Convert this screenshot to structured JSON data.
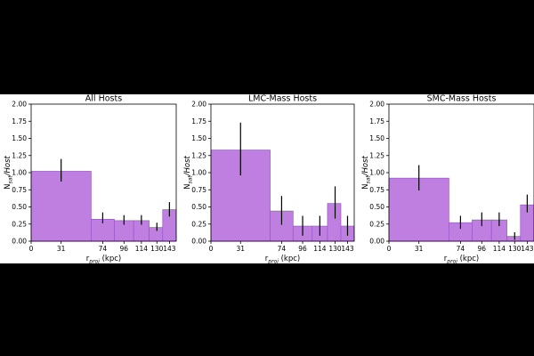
{
  "chart_data": [
    {
      "type": "bar",
      "title": "All Hosts",
      "xlabel": {
        "main": "r",
        "sub": "proj",
        "tail": " (kpc)"
      },
      "ylabel": {
        "main": "N",
        "sub": "sat",
        "tail": "/Host"
      },
      "xlim": [
        0,
        150
      ],
      "ylim": [
        0,
        2.0
      ],
      "xticks": [
        0,
        31,
        74,
        96,
        114,
        130,
        143
      ],
      "yticks": [
        "0.00",
        "0.25",
        "0.50",
        "0.75",
        "1.00",
        "1.25",
        "1.50",
        "1.75",
        "2.00"
      ],
      "bins": [
        {
          "x0": 0,
          "x1": 62,
          "value": 1.02,
          "err_low": 0.87,
          "err_high": 1.2,
          "err_x": 31
        },
        {
          "x0": 62,
          "x1": 86,
          "value": 0.32,
          "err_low": 0.26,
          "err_high": 0.42,
          "err_x": 74
        },
        {
          "x0": 86,
          "x1": 106,
          "value": 0.3,
          "err_low": 0.24,
          "err_high": 0.38,
          "err_x": 96
        },
        {
          "x0": 106,
          "x1": 122,
          "value": 0.3,
          "err_low": 0.24,
          "err_high": 0.38,
          "err_x": 114
        },
        {
          "x0": 122,
          "x1": 136,
          "value": 0.2,
          "err_low": 0.15,
          "err_high": 0.27,
          "err_x": 130
        },
        {
          "x0": 136,
          "x1": 150,
          "value": 0.46,
          "err_low": 0.36,
          "err_high": 0.57,
          "err_x": 143
        }
      ]
    },
    {
      "type": "bar",
      "title": "LMC-Mass Hosts",
      "xlabel": {
        "main": "r",
        "sub": "proj",
        "tail": " (kpc)"
      },
      "ylabel": {
        "main": "N",
        "sub": "sat",
        "tail": "/Host"
      },
      "xlim": [
        0,
        150
      ],
      "ylim": [
        0,
        2.0
      ],
      "xticks": [
        0,
        31,
        74,
        96,
        114,
        130,
        143
      ],
      "yticks": [
        "0.00",
        "0.25",
        "0.50",
        "0.75",
        "1.00",
        "1.25",
        "1.50",
        "1.75",
        "2.00"
      ],
      "bins": [
        {
          "x0": 0,
          "x1": 62,
          "value": 1.33,
          "err_low": 0.96,
          "err_high": 1.73,
          "err_x": 31
        },
        {
          "x0": 62,
          "x1": 86,
          "value": 0.44,
          "err_low": 0.24,
          "err_high": 0.66,
          "err_x": 74
        },
        {
          "x0": 86,
          "x1": 106,
          "value": 0.22,
          "err_low": 0.08,
          "err_high": 0.37,
          "err_x": 96
        },
        {
          "x0": 106,
          "x1": 122,
          "value": 0.22,
          "err_low": 0.08,
          "err_high": 0.37,
          "err_x": 114
        },
        {
          "x0": 122,
          "x1": 136,
          "value": 0.55,
          "err_low": 0.33,
          "err_high": 0.8,
          "err_x": 130
        },
        {
          "x0": 136,
          "x1": 150,
          "value": 0.22,
          "err_low": 0.08,
          "err_high": 0.37,
          "err_x": 143
        }
      ]
    },
    {
      "type": "bar",
      "title": "SMC-Mass Hosts",
      "xlabel": {
        "main": "r",
        "sub": "proj",
        "tail": " (kpc)"
      },
      "ylabel": {
        "main": "N",
        "sub": "sat",
        "tail": "/Host"
      },
      "xlim": [
        0,
        150
      ],
      "ylim": [
        0,
        2.0
      ],
      "xticks": [
        0,
        31,
        74,
        96,
        114,
        130,
        143
      ],
      "yticks": [
        "0.00",
        "0.25",
        "0.50",
        "0.75",
        "1.00",
        "1.25",
        "1.50",
        "1.75",
        "2.00"
      ],
      "bins": [
        {
          "x0": 0,
          "x1": 62,
          "value": 0.92,
          "err_low": 0.74,
          "err_high": 1.11,
          "err_x": 31
        },
        {
          "x0": 62,
          "x1": 86,
          "value": 0.27,
          "err_low": 0.18,
          "err_high": 0.37,
          "err_x": 74
        },
        {
          "x0": 86,
          "x1": 106,
          "value": 0.31,
          "err_low": 0.22,
          "err_high": 0.42,
          "err_x": 96
        },
        {
          "x0": 106,
          "x1": 122,
          "value": 0.31,
          "err_low": 0.22,
          "err_high": 0.42,
          "err_x": 114
        },
        {
          "x0": 122,
          "x1": 136,
          "value": 0.07,
          "err_low": 0.02,
          "err_high": 0.13,
          "err_x": 130
        },
        {
          "x0": 136,
          "x1": 150,
          "value": 0.53,
          "err_low": 0.42,
          "err_high": 0.68,
          "err_x": 143
        }
      ]
    }
  ],
  "colors": {
    "bar_fill": "#bf7fe0",
    "bar_edge": "#9a55c8",
    "error_bar": "#000000",
    "background": "#000000"
  }
}
